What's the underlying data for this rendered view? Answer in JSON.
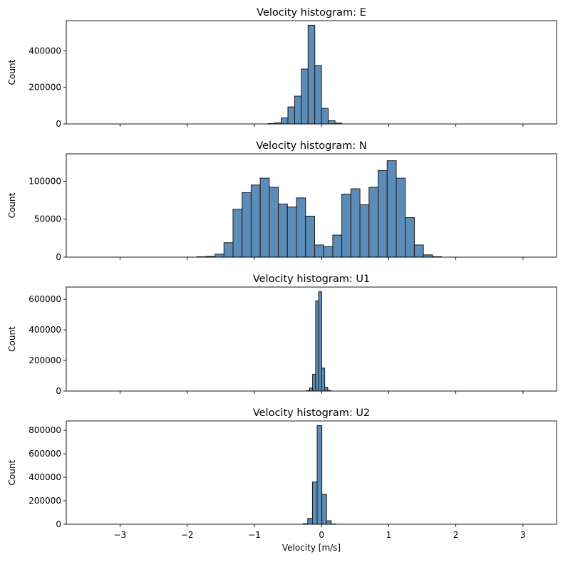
{
  "colors": {
    "bar_fill": "#5b8db8",
    "bar_edge": "#1a1a1a",
    "axis": "#000000",
    "background": "#ffffff"
  },
  "chart_data": [
    {
      "type": "bar",
      "title": "Velocity histogram: E",
      "ylabel": "Count",
      "xlabel": "",
      "xlim": [
        -3.8,
        3.5
      ],
      "ylim": [
        0,
        565000
      ],
      "xticks": [
        -3,
        -2,
        -1,
        0,
        1,
        2,
        3
      ],
      "yticks": [
        0,
        200000,
        400000
      ],
      "show_xtick_labels": false,
      "bin_width": 0.1,
      "bins": [
        {
          "x": -0.75,
          "y": 2000
        },
        {
          "x": -0.65,
          "y": 6000
        },
        {
          "x": -0.55,
          "y": 33000
        },
        {
          "x": -0.45,
          "y": 93000
        },
        {
          "x": -0.35,
          "y": 152000
        },
        {
          "x": -0.25,
          "y": 300000
        },
        {
          "x": -0.15,
          "y": 540000
        },
        {
          "x": -0.05,
          "y": 320000
        },
        {
          "x": 0.05,
          "y": 85000
        },
        {
          "x": 0.15,
          "y": 18000
        },
        {
          "x": 0.25,
          "y": 5000
        }
      ]
    },
    {
      "type": "bar",
      "title": "Velocity histogram: N",
      "ylabel": "Count",
      "xlabel": "",
      "xlim": [
        -3.8,
        3.5
      ],
      "ylim": [
        0,
        136000
      ],
      "xticks": [
        -3,
        -2,
        -1,
        0,
        1,
        2,
        3
      ],
      "yticks": [
        0,
        50000,
        100000
      ],
      "show_xtick_labels": false,
      "bin_width": 0.135,
      "bins": [
        {
          "x": -1.79,
          "y": 500
        },
        {
          "x": -1.655,
          "y": 1000
        },
        {
          "x": -1.52,
          "y": 4000
        },
        {
          "x": -1.385,
          "y": 19000
        },
        {
          "x": -1.25,
          "y": 63000
        },
        {
          "x": -1.115,
          "y": 85000
        },
        {
          "x": -0.98,
          "y": 95000
        },
        {
          "x": -0.845,
          "y": 104000
        },
        {
          "x": -0.71,
          "y": 92000
        },
        {
          "x": -0.575,
          "y": 70000
        },
        {
          "x": -0.44,
          "y": 66000
        },
        {
          "x": -0.305,
          "y": 78000
        },
        {
          "x": -0.17,
          "y": 54000
        },
        {
          "x": -0.035,
          "y": 16000
        },
        {
          "x": 0.1,
          "y": 14000
        },
        {
          "x": 0.235,
          "y": 29000
        },
        {
          "x": 0.37,
          "y": 83000
        },
        {
          "x": 0.505,
          "y": 90000
        },
        {
          "x": 0.64,
          "y": 69000
        },
        {
          "x": 0.775,
          "y": 92000
        },
        {
          "x": 0.91,
          "y": 114000
        },
        {
          "x": 1.045,
          "y": 127000
        },
        {
          "x": 1.18,
          "y": 104000
        },
        {
          "x": 1.315,
          "y": 52000
        },
        {
          "x": 1.45,
          "y": 16000
        },
        {
          "x": 1.585,
          "y": 3000
        },
        {
          "x": 1.72,
          "y": 600
        }
      ]
    },
    {
      "type": "bar",
      "title": "Velocity histogram: U1",
      "ylabel": "Count",
      "xlabel": "",
      "xlim": [
        -3.8,
        3.5
      ],
      "ylim": [
        0,
        680000
      ],
      "xticks": [
        -3,
        -2,
        -1,
        0,
        1,
        2,
        3
      ],
      "yticks": [
        0,
        200000,
        400000,
        600000
      ],
      "show_xtick_labels": false,
      "bin_width": 0.045,
      "bins": [
        {
          "x": -0.2,
          "y": 3000
        },
        {
          "x": -0.155,
          "y": 20000
        },
        {
          "x": -0.11,
          "y": 110000
        },
        {
          "x": -0.065,
          "y": 590000
        },
        {
          "x": -0.02,
          "y": 650000
        },
        {
          "x": 0.025,
          "y": 150000
        },
        {
          "x": 0.07,
          "y": 25000
        },
        {
          "x": 0.115,
          "y": 4000
        }
      ]
    },
    {
      "type": "bar",
      "title": "Velocity histogram: U2",
      "ylabel": "Count",
      "xlabel": "Velocity [m/s]",
      "xlim": [
        -3.8,
        3.5
      ],
      "ylim": [
        0,
        880000
      ],
      "xticks": [
        -3,
        -2,
        -1,
        0,
        1,
        2,
        3
      ],
      "yticks": [
        0,
        200000,
        400000,
        600000,
        800000
      ],
      "show_xtick_labels": true,
      "bin_width": 0.07,
      "bins": [
        {
          "x": -0.24,
          "y": 5000
        },
        {
          "x": -0.17,
          "y": 50000
        },
        {
          "x": -0.1,
          "y": 360000
        },
        {
          "x": -0.03,
          "y": 840000
        },
        {
          "x": 0.04,
          "y": 255000
        },
        {
          "x": 0.11,
          "y": 30000
        },
        {
          "x": 0.18,
          "y": 3000
        }
      ]
    }
  ]
}
